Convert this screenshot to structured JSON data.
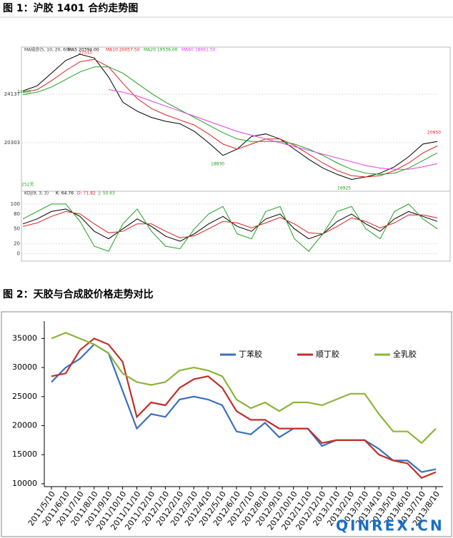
{
  "captions": [
    "图 1：沪胶 1401 合约走势图",
    "图 2：天胶与合成胶价格走势对比"
  ],
  "chart_data": [
    {
      "type": "line",
      "legend_title": "MA组合(5, 10, 20, 60)",
      "ylim": [
        16640,
        27750
      ],
      "yticks": [
        24137,
        20303
      ],
      "annotations": [
        "27515",
        "24850",
        "18830",
        "16925",
        "20950",
        "252天"
      ],
      "series": [
        {
          "name": "MA5 20394.00",
          "color": "#000000",
          "values": [
            24400,
            24800,
            25800,
            26800,
            27300,
            27000,
            25500,
            23500,
            22800,
            22300,
            22000,
            21800,
            21200,
            20300,
            19300,
            19800,
            20800,
            21000,
            20600,
            19800,
            19000,
            18300,
            17800,
            17400,
            17600,
            17900,
            18400,
            19200,
            20200,
            20400
          ]
        },
        {
          "name": "MA10 20057.50",
          "color": "#e02020",
          "values": [
            24300,
            24500,
            25200,
            26000,
            26700,
            26900,
            26300,
            25000,
            23800,
            23000,
            22500,
            22100,
            21700,
            21000,
            20200,
            19800,
            20200,
            20600,
            20600,
            20100,
            19400,
            18700,
            18100,
            17700,
            17600,
            17700,
            18100,
            18700,
            19500,
            20050
          ]
        },
        {
          "name": "MA20 19536.00",
          "color": "#20a020",
          "values": [
            24100,
            24300,
            24700,
            25300,
            25900,
            26300,
            26300,
            25800,
            25000,
            24200,
            23500,
            22900,
            22300,
            21700,
            21100,
            20600,
            20400,
            20400,
            20400,
            20200,
            19800,
            19300,
            18700,
            18200,
            17900,
            17800,
            17900,
            18300,
            18900,
            19500
          ]
        },
        {
          "name": "MA60 18661.50",
          "color": "#e040e0",
          "values": [
            null,
            null,
            null,
            null,
            null,
            null,
            24500,
            24300,
            24000,
            23600,
            23200,
            22800,
            22400,
            22000,
            21600,
            21200,
            20900,
            20600,
            20300,
            20000,
            19700,
            19400,
            19100,
            18800,
            18500,
            18300,
            18200,
            18200,
            18400,
            18650
          ]
        }
      ]
    },
    {
      "type": "line",
      "legend_title": "KDJ(9, 3, 3)",
      "ylim": [
        -15,
        120
      ],
      "yticks": [
        100,
        80,
        50,
        20,
        0
      ],
      "series": [
        {
          "name": "K: 64.76",
          "color": "#000000",
          "values": [
            60,
            70,
            85,
            90,
            75,
            45,
            30,
            50,
            70,
            55,
            35,
            25,
            40,
            60,
            75,
            55,
            45,
            70,
            80,
            50,
            30,
            40,
            65,
            80,
            60,
            45,
            70,
            85,
            75,
            65
          ]
        },
        {
          "name": "D: 71.82",
          "color": "#e02020",
          "values": [
            55,
            62,
            75,
            85,
            80,
            60,
            42,
            45,
            60,
            60,
            45,
            32,
            36,
            50,
            65,
            62,
            52,
            62,
            73,
            60,
            42,
            40,
            55,
            72,
            65,
            52,
            62,
            78,
            78,
            72
          ]
        },
        {
          "name": "J: 50.63",
          "color": "#20a020",
          "values": [
            70,
            85,
            100,
            100,
            65,
            15,
            5,
            60,
            90,
            45,
            15,
            10,
            50,
            80,
            95,
            40,
            30,
            85,
            95,
            30,
            5,
            40,
            85,
            95,
            50,
            30,
            85,
            100,
            70,
            50
          ]
        }
      ]
    },
    {
      "type": "line",
      "watermark": "QINREX.CN",
      "ylim": [
        9500,
        38000
      ],
      "yticks": [
        10000,
        15000,
        20000,
        25000,
        30000,
        35000
      ],
      "categories": [
        "2011/5/10",
        "2011/6/10",
        "2011/7/10",
        "2011/8/10",
        "2011/9/10",
        "2011/10/10",
        "2011/11/10",
        "2011/12/10",
        "2012/1/10",
        "2012/2/10",
        "2012/3/10",
        "2012/4/10",
        "2012/5/10",
        "2012/6/10",
        "2012/7/10",
        "2012/8/10",
        "2012/9/10",
        "2012/10/10",
        "2012/11/10",
        "2012/12/10",
        "2013/1/10",
        "2013/2/10",
        "2013/3/10",
        "2013/4/10",
        "2013/5/10",
        "2013/6/10",
        "2013/7/10",
        "2013/8/10"
      ],
      "series": [
        {
          "name": "丁苯胶",
          "color": "#3a6fc0",
          "values": [
            27500,
            30000,
            31500,
            34000,
            32500,
            26000,
            19500,
            22000,
            21500,
            24500,
            25000,
            24500,
            23500,
            19000,
            18500,
            20500,
            18000,
            19500,
            19500,
            16500,
            17500,
            17500,
            17500,
            16000,
            14000,
            14000,
            12000,
            12500
          ]
        },
        {
          "name": "顺丁胶",
          "color": "#c0302a",
          "values": [
            28500,
            29000,
            33000,
            35000,
            34000,
            31000,
            21500,
            24000,
            23500,
            26500,
            28000,
            28500,
            26500,
            22500,
            21000,
            21000,
            19500,
            19500,
            19500,
            17000,
            17500,
            17500,
            17500,
            15000,
            14000,
            13500,
            11000,
            12000
          ]
        },
        {
          "name": "全乳胶",
          "color": "#8db43a",
          "values": [
            35000,
            36000,
            35000,
            34000,
            32500,
            29000,
            27500,
            27000,
            27500,
            29500,
            30000,
            29500,
            28500,
            24500,
            23000,
            24000,
            22500,
            24000,
            24000,
            23500,
            24500,
            25500,
            25500,
            22000,
            19000,
            19000,
            17000,
            19500
          ]
        }
      ]
    }
  ]
}
